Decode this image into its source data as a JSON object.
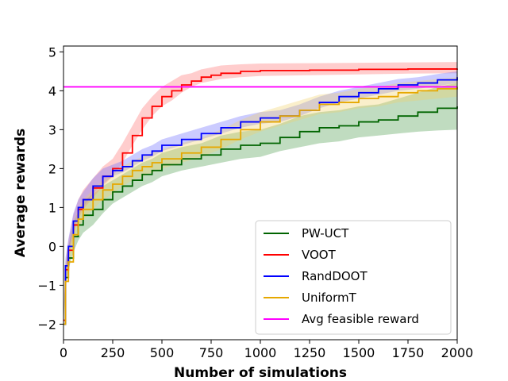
{
  "chart_data": {
    "type": "line",
    "title": "",
    "xlabel": "Number of simulations",
    "ylabel": "Average rewards",
    "xlim": [
      0,
      2000
    ],
    "ylim": [
      -2.4,
      5.15
    ],
    "xticks": [
      0,
      250,
      500,
      750,
      1000,
      1250,
      1500,
      1750,
      2000
    ],
    "yticks": [
      -2,
      -1,
      0,
      1,
      2,
      3,
      4,
      5
    ],
    "xtick_labels": [
      "0",
      "250",
      "500",
      "750",
      "1000",
      "1250",
      "1500",
      "1750",
      "2000"
    ],
    "ytick_labels": [
      "−2",
      "−1",
      "0",
      "1",
      "2",
      "3",
      "4",
      "5"
    ],
    "grid": false,
    "legend_position": "lower-right",
    "series": [
      {
        "name": "PW-UCT",
        "color": "#006400",
        "band_color": "#4a9a4a",
        "x": [
          0,
          10,
          25,
          50,
          75,
          100,
          150,
          200,
          250,
          300,
          350,
          400,
          450,
          500,
          600,
          700,
          800,
          900,
          1000,
          1100,
          1200,
          1300,
          1400,
          1500,
          1600,
          1700,
          1800,
          1900,
          2000
        ],
        "y": [
          -2.0,
          -0.8,
          -0.3,
          0.25,
          0.55,
          0.8,
          0.95,
          1.2,
          1.4,
          1.55,
          1.7,
          1.85,
          1.95,
          2.1,
          2.25,
          2.35,
          2.5,
          2.6,
          2.65,
          2.8,
          2.95,
          3.05,
          3.1,
          3.2,
          3.25,
          3.35,
          3.45,
          3.55,
          3.6
        ],
        "lower": [
          -2.0,
          -1.0,
          -0.6,
          -0.15,
          0.15,
          0.35,
          0.55,
          0.85,
          1.1,
          1.25,
          1.4,
          1.55,
          1.65,
          1.8,
          1.95,
          2.05,
          2.15,
          2.25,
          2.3,
          2.45,
          2.55,
          2.65,
          2.7,
          2.8,
          2.85,
          2.9,
          2.95,
          2.98,
          3.0
        ],
        "upper": [
          -2.0,
          -0.6,
          0.0,
          0.6,
          0.9,
          1.15,
          1.35,
          1.55,
          1.7,
          1.85,
          2.0,
          2.15,
          2.25,
          2.4,
          2.55,
          2.65,
          2.85,
          2.95,
          3.0,
          3.15,
          3.35,
          3.45,
          3.5,
          3.6,
          3.65,
          3.8,
          3.95,
          4.1,
          4.2
        ]
      },
      {
        "name": "VOOT",
        "color": "#ff0000",
        "band_color": "#ff7070",
        "x": [
          0,
          10,
          25,
          50,
          75,
          100,
          150,
          200,
          250,
          300,
          350,
          400,
          450,
          500,
          550,
          600,
          650,
          700,
          750,
          800,
          900,
          1000,
          1250,
          1500,
          1750,
          2000
        ],
        "y": [
          -1.9,
          -0.6,
          -0.1,
          0.55,
          0.95,
          1.2,
          1.5,
          1.8,
          2.0,
          2.4,
          2.85,
          3.3,
          3.6,
          3.85,
          4.0,
          4.15,
          4.25,
          4.35,
          4.4,
          4.45,
          4.5,
          4.52,
          4.53,
          4.55,
          4.56,
          4.57
        ],
        "lower": [
          -1.9,
          -0.8,
          -0.35,
          0.3,
          0.7,
          0.95,
          1.25,
          1.55,
          1.8,
          2.15,
          2.6,
          3.0,
          3.35,
          3.6,
          3.75,
          3.95,
          4.1,
          4.2,
          4.25,
          4.3,
          4.35,
          4.38,
          4.4,
          4.42,
          4.44,
          4.45
        ],
        "upper": [
          -1.9,
          -0.4,
          0.15,
          0.8,
          1.2,
          1.45,
          1.75,
          2.05,
          2.25,
          2.65,
          3.1,
          3.55,
          3.85,
          4.1,
          4.25,
          4.4,
          4.45,
          4.55,
          4.6,
          4.65,
          4.68,
          4.7,
          4.71,
          4.72,
          4.73,
          4.74
        ]
      },
      {
        "name": "RandDOOT",
        "color": "#0000ff",
        "band_color": "#6b6bff",
        "x": [
          0,
          10,
          25,
          50,
          75,
          100,
          150,
          200,
          250,
          300,
          350,
          400,
          450,
          500,
          600,
          700,
          800,
          900,
          1000,
          1100,
          1200,
          1300,
          1400,
          1500,
          1600,
          1700,
          1800,
          1900,
          2000
        ],
        "y": [
          -2.0,
          -0.5,
          0.0,
          0.65,
          1.0,
          1.2,
          1.55,
          1.8,
          1.95,
          2.05,
          2.2,
          2.35,
          2.45,
          2.6,
          2.75,
          2.9,
          3.05,
          3.2,
          3.3,
          3.35,
          3.5,
          3.7,
          3.85,
          3.95,
          4.05,
          4.15,
          4.2,
          4.28,
          4.35
        ],
        "lower": [
          -2.0,
          -0.7,
          -0.25,
          0.4,
          0.8,
          1.0,
          1.35,
          1.6,
          1.8,
          1.9,
          2.05,
          2.2,
          2.3,
          2.45,
          2.6,
          2.75,
          2.9,
          3.05,
          3.15,
          3.2,
          3.35,
          3.55,
          3.7,
          3.8,
          3.9,
          4.0,
          4.05,
          4.12,
          4.2
        ],
        "upper": [
          -2.0,
          -0.3,
          0.2,
          0.85,
          1.2,
          1.4,
          1.75,
          2.0,
          2.1,
          2.2,
          2.35,
          2.5,
          2.6,
          2.75,
          2.9,
          3.05,
          3.2,
          3.35,
          3.45,
          3.5,
          3.65,
          3.85,
          4.0,
          4.1,
          4.2,
          4.3,
          4.35,
          4.43,
          4.5
        ]
      },
      {
        "name": "UniformT",
        "color": "#e6a800",
        "band_color": "#f2d06a",
        "x": [
          0,
          10,
          25,
          50,
          75,
          100,
          150,
          200,
          250,
          300,
          350,
          400,
          450,
          500,
          600,
          700,
          800,
          900,
          1000,
          1100,
          1200,
          1300,
          1400,
          1500,
          1600,
          1700,
          1800,
          1900,
          2000
        ],
        "y": [
          -2.0,
          -0.9,
          -0.4,
          0.3,
          0.7,
          0.95,
          1.2,
          1.45,
          1.6,
          1.8,
          1.95,
          2.05,
          2.15,
          2.25,
          2.4,
          2.55,
          2.75,
          3.0,
          3.2,
          3.35,
          3.5,
          3.65,
          3.7,
          3.8,
          3.85,
          3.95,
          4.0,
          4.05,
          4.1
        ],
        "lower": [
          -2.0,
          -1.1,
          -0.65,
          0.05,
          0.45,
          0.7,
          0.95,
          1.2,
          1.35,
          1.55,
          1.7,
          1.8,
          1.9,
          2.0,
          2.15,
          2.3,
          2.5,
          2.75,
          2.95,
          3.1,
          3.25,
          3.4,
          3.45,
          3.55,
          3.6,
          3.7,
          3.75,
          3.8,
          3.85
        ],
        "upper": [
          -2.0,
          -0.7,
          -0.15,
          0.55,
          0.95,
          1.2,
          1.45,
          1.7,
          1.85,
          2.05,
          2.2,
          2.3,
          2.4,
          2.5,
          2.65,
          2.8,
          3.0,
          3.25,
          3.45,
          3.6,
          3.75,
          3.9,
          3.95,
          4.05,
          4.1,
          4.2,
          4.25,
          4.3,
          4.35
        ]
      },
      {
        "name": "Avg feasible reward",
        "color": "#ff00ff",
        "x": [
          0,
          2000
        ],
        "y": [
          4.1,
          4.1
        ]
      }
    ]
  }
}
